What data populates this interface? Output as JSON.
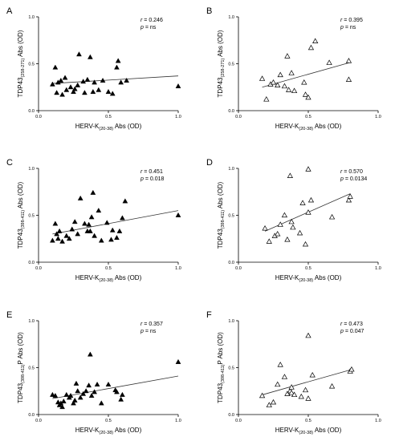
{
  "chart_data": [
    {
      "panel": "A",
      "type": "scatter",
      "marker": "filled-triangle",
      "ylabel": {
        "main": "TDP43",
        "sub": "(258-271)",
        "rest": " Abs (OD)"
      },
      "xlabel": {
        "main": "HERV-K",
        "sub": "(20-38)",
        "rest": " Abs (OD)"
      },
      "xlim": [
        0,
        1
      ],
      "ylim": [
        0,
        1
      ],
      "xticks": [
        "0.0",
        "0.5",
        "1.0"
      ],
      "yticks": [
        "0.0",
        "0.5",
        "1.0"
      ],
      "stats": {
        "r_label": "r",
        "r_value": "= 0.246",
        "p_label": "p",
        "p_value": "= ns"
      },
      "points": [
        [
          0.1,
          0.28
        ],
        [
          0.12,
          0.46
        ],
        [
          0.13,
          0.19
        ],
        [
          0.14,
          0.3
        ],
        [
          0.16,
          0.32
        ],
        [
          0.17,
          0.17
        ],
        [
          0.19,
          0.35
        ],
        [
          0.2,
          0.22
        ],
        [
          0.23,
          0.25
        ],
        [
          0.25,
          0.2
        ],
        [
          0.26,
          0.23
        ],
        [
          0.28,
          0.27
        ],
        [
          0.29,
          0.6
        ],
        [
          0.32,
          0.31
        ],
        [
          0.33,
          0.19
        ],
        [
          0.35,
          0.33
        ],
        [
          0.37,
          0.57
        ],
        [
          0.39,
          0.2
        ],
        [
          0.4,
          0.3
        ],
        [
          0.43,
          0.22
        ],
        [
          0.46,
          0.32
        ],
        [
          0.5,
          0.2
        ],
        [
          0.53,
          0.18
        ],
        [
          0.56,
          0.46
        ],
        [
          0.57,
          0.53
        ],
        [
          0.59,
          0.3
        ],
        [
          0.63,
          0.32
        ],
        [
          1.0,
          0.26
        ]
      ],
      "fit": {
        "x": [
          0.1,
          1.0
        ],
        "y": [
          0.29,
          0.37
        ]
      }
    },
    {
      "panel": "B",
      "type": "scatter",
      "marker": "open-triangle",
      "ylabel": {
        "main": "TDP43",
        "sub": "(258-271)",
        "rest": " Abs (OD)"
      },
      "xlabel": {
        "main": "HERV-K",
        "sub": "(20-38)",
        "rest": " Abs (OD)"
      },
      "xlim": [
        0,
        1
      ],
      "ylim": [
        0,
        1
      ],
      "xticks": [
        "0.0",
        "0.5",
        "1.0"
      ],
      "yticks": [
        "0.0",
        "0.5",
        "1.0"
      ],
      "stats": {
        "r_label": "r",
        "r_value": "= 0.395",
        "p_label": "p",
        "p_value": "= ns"
      },
      "points": [
        [
          0.17,
          0.34
        ],
        [
          0.2,
          0.12
        ],
        [
          0.23,
          0.28
        ],
        [
          0.25,
          0.3
        ],
        [
          0.28,
          0.27
        ],
        [
          0.3,
          0.38
        ],
        [
          0.33,
          0.26
        ],
        [
          0.35,
          0.58
        ],
        [
          0.36,
          0.22
        ],
        [
          0.38,
          0.4
        ],
        [
          0.4,
          0.21
        ],
        [
          0.47,
          0.3
        ],
        [
          0.48,
          0.17
        ],
        [
          0.5,
          0.14
        ],
        [
          0.52,
          0.67
        ],
        [
          0.55,
          0.74
        ],
        [
          0.65,
          0.51
        ],
        [
          0.79,
          0.53
        ],
        [
          0.79,
          0.33
        ]
      ],
      "fit": {
        "x": [
          0.17,
          0.79
        ],
        "y": [
          0.25,
          0.51
        ]
      }
    },
    {
      "panel": "C",
      "type": "scatter",
      "marker": "filled-triangle",
      "ylabel": {
        "main": "TDP43",
        "sub": "(398-411)",
        "rest": " Abs (OD)"
      },
      "xlabel": {
        "main": "HERV-K",
        "sub": "(20-38)",
        "rest": " Abs (OD)"
      },
      "xlim": [
        0,
        1
      ],
      "ylim": [
        0,
        1
      ],
      "xticks": [
        "0.0",
        "0.5",
        "1.0"
      ],
      "yticks": [
        "0.0",
        "0.5",
        "1.0"
      ],
      "stats": {
        "r_label": "r",
        "r_value": "= 0.451",
        "p_label": "p",
        "p_value": "= 0.018"
      },
      "points": [
        [
          0.1,
          0.23
        ],
        [
          0.12,
          0.41
        ],
        [
          0.13,
          0.3
        ],
        [
          0.14,
          0.25
        ],
        [
          0.15,
          0.33
        ],
        [
          0.17,
          0.22
        ],
        [
          0.2,
          0.28
        ],
        [
          0.22,
          0.25
        ],
        [
          0.24,
          0.35
        ],
        [
          0.26,
          0.43
        ],
        [
          0.28,
          0.3
        ],
        [
          0.3,
          0.68
        ],
        [
          0.33,
          0.41
        ],
        [
          0.35,
          0.33
        ],
        [
          0.36,
          0.4
        ],
        [
          0.37,
          0.33
        ],
        [
          0.38,
          0.48
        ],
        [
          0.39,
          0.74
        ],
        [
          0.4,
          0.28
        ],
        [
          0.43,
          0.55
        ],
        [
          0.45,
          0.23
        ],
        [
          0.49,
          0.42
        ],
        [
          0.52,
          0.24
        ],
        [
          0.53,
          0.34
        ],
        [
          0.56,
          0.26
        ],
        [
          0.58,
          0.33
        ],
        [
          0.6,
          0.47
        ],
        [
          0.62,
          0.65
        ],
        [
          1.0,
          0.5
        ]
      ],
      "fit": {
        "x": [
          0.1,
          1.0
        ],
        "y": [
          0.3,
          0.55
        ]
      }
    },
    {
      "panel": "D",
      "type": "scatter",
      "marker": "open-triangle",
      "ylabel": {
        "main": "TDP43",
        "sub": "(398-411)",
        "rest": " Abs (OD)"
      },
      "xlabel": {
        "main": "HERV-K",
        "sub": "(20-38)",
        "rest": " Abs (OD)"
      },
      "xlim": [
        0,
        1
      ],
      "ylim": [
        0,
        1
      ],
      "xticks": [
        "0.0",
        "0.5",
        "1.0"
      ],
      "yticks": [
        "0.0",
        "0.5",
        "1.0"
      ],
      "stats": {
        "r_label": "r",
        "r_value": "= 0.570",
        "p_label": "p",
        "p_value": "= 0.0134"
      },
      "points": [
        [
          0.19,
          0.36
        ],
        [
          0.22,
          0.22
        ],
        [
          0.26,
          0.28
        ],
        [
          0.28,
          0.3
        ],
        [
          0.3,
          0.4
        ],
        [
          0.33,
          0.5
        ],
        [
          0.35,
          0.24
        ],
        [
          0.37,
          0.92
        ],
        [
          0.38,
          0.43
        ],
        [
          0.39,
          0.37
        ],
        [
          0.44,
          0.31
        ],
        [
          0.46,
          0.63
        ],
        [
          0.48,
          0.19
        ],
        [
          0.5,
          0.99
        ],
        [
          0.5,
          0.53
        ],
        [
          0.52,
          0.66
        ],
        [
          0.67,
          0.48
        ],
        [
          0.79,
          0.66
        ],
        [
          0.8,
          0.7
        ]
      ],
      "fit": {
        "x": [
          0.19,
          0.8
        ],
        "y": [
          0.33,
          0.73
        ]
      }
    },
    {
      "panel": "E",
      "type": "scatter",
      "marker": "filled-triangle",
      "ylabel": {
        "main": "TDP43",
        "sub": "(398-411)",
        "rest": "P Abs (OD)"
      },
      "xlabel": {
        "main": "HERV-K",
        "sub": "(20-38)",
        "rest": " Abs (OD)"
      },
      "xlim": [
        0,
        1
      ],
      "ylim": [
        0,
        1
      ],
      "xticks": [
        "0.0",
        "0.5",
        "1.0"
      ],
      "yticks": [
        "0.0",
        "0.5",
        "1.0"
      ],
      "stats": {
        "r_label": "r",
        "r_value": "= 0.357",
        "p_label": "p",
        "p_value": "= ns"
      },
      "points": [
        [
          0.1,
          0.21
        ],
        [
          0.12,
          0.2
        ],
        [
          0.14,
          0.13
        ],
        [
          0.15,
          0.1
        ],
        [
          0.16,
          0.12
        ],
        [
          0.17,
          0.08
        ],
        [
          0.18,
          0.14
        ],
        [
          0.2,
          0.21
        ],
        [
          0.22,
          0.18
        ],
        [
          0.23,
          0.2
        ],
        [
          0.25,
          0.12
        ],
        [
          0.26,
          0.15
        ],
        [
          0.27,
          0.33
        ],
        [
          0.28,
          0.25
        ],
        [
          0.3,
          0.18
        ],
        [
          0.32,
          0.22
        ],
        [
          0.34,
          0.25
        ],
        [
          0.36,
          0.31
        ],
        [
          0.37,
          0.64
        ],
        [
          0.38,
          0.2
        ],
        [
          0.4,
          0.24
        ],
        [
          0.42,
          0.32
        ],
        [
          0.45,
          0.12
        ],
        [
          0.5,
          0.32
        ],
        [
          0.55,
          0.26
        ],
        [
          0.56,
          0.24
        ],
        [
          0.59,
          0.16
        ],
        [
          0.6,
          0.21
        ],
        [
          1.0,
          0.56
        ]
      ],
      "fit": {
        "x": [
          0.1,
          1.0
        ],
        "y": [
          0.17,
          0.41
        ]
      }
    },
    {
      "panel": "F",
      "type": "scatter",
      "marker": "open-triangle",
      "ylabel": {
        "main": "TDP43",
        "sub": "(398-411)",
        "rest": "P Abs (OD)"
      },
      "xlabel": {
        "main": "HERV-K",
        "sub": "(20-38)",
        "rest": " Abs (OD)"
      },
      "xlim": [
        0,
        1
      ],
      "ylim": [
        0,
        1
      ],
      "xticks": [
        "0.0",
        "0.5",
        "1.0"
      ],
      "yticks": [
        "0.0",
        "0.5",
        "1.0"
      ],
      "stats": {
        "r_label": "r",
        "r_value": "= 0.473",
        "p_label": "p",
        "p_value": "= 0.047"
      },
      "points": [
        [
          0.17,
          0.2
        ],
        [
          0.22,
          0.1
        ],
        [
          0.25,
          0.13
        ],
        [
          0.28,
          0.32
        ],
        [
          0.3,
          0.53
        ],
        [
          0.33,
          0.4
        ],
        [
          0.35,
          0.22
        ],
        [
          0.37,
          0.25
        ],
        [
          0.38,
          0.23
        ],
        [
          0.38,
          0.29
        ],
        [
          0.4,
          0.21
        ],
        [
          0.45,
          0.19
        ],
        [
          0.48,
          0.26
        ],
        [
          0.5,
          0.84
        ],
        [
          0.5,
          0.17
        ],
        [
          0.53,
          0.42
        ],
        [
          0.67,
          0.3
        ],
        [
          0.8,
          0.46
        ],
        [
          0.81,
          0.48
        ]
      ],
      "fit": {
        "x": [
          0.17,
          0.81
        ],
        "y": [
          0.21,
          0.48
        ]
      }
    }
  ]
}
